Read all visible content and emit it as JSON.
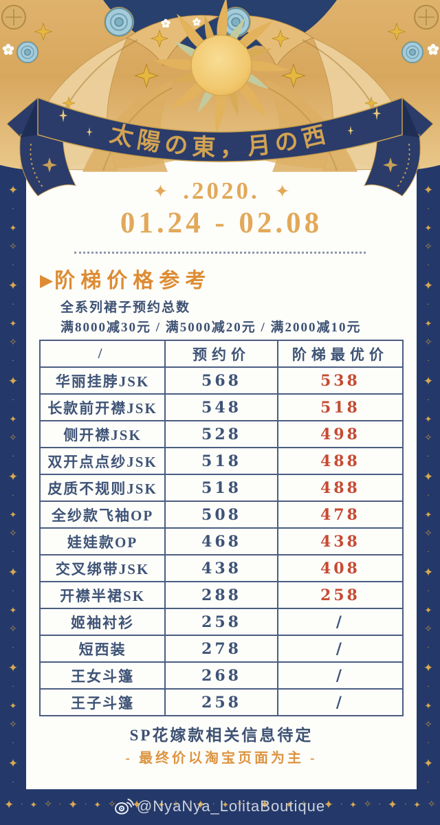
{
  "colors": {
    "page_navy": "#24396a",
    "panel_white": "#fdfdfa",
    "gold_star": "#d9a851",
    "date_gold": "#e2a959",
    "heading_orange": "#dd8c33",
    "body_navy": "#3d5173",
    "table_border_navy": "#4a5d80",
    "best_price_red": "#c64a32",
    "note2_gold": "#dd9440",
    "ribbon_navy": "#2b3c6a",
    "sun_gold": "#f3cd74"
  },
  "banner": {
    "title": "太陽の東，月の西"
  },
  "dates": {
    "year": ".2020.",
    "range": "01.24 - 02.08"
  },
  "section": {
    "marker": "▶",
    "heading": "阶梯价格参考",
    "line1": "全系列裙子预约总数",
    "line2": "满8000减30元 / 满5000减20元 / 满2000减10元"
  },
  "table": {
    "headers": [
      "/",
      "预约价",
      "阶梯最优价"
    ],
    "rows": [
      {
        "name": "华丽挂脖JSK",
        "preorder": "568",
        "best": "538"
      },
      {
        "name": "长款前开襟JSK",
        "preorder": "548",
        "best": "518"
      },
      {
        "name": "侧开襟JSK",
        "preorder": "528",
        "best": "498"
      },
      {
        "name": "双开点点纱JSK",
        "preorder": "518",
        "best": "488"
      },
      {
        "name": "皮质不规则JSK",
        "preorder": "518",
        "best": "488"
      },
      {
        "name": "全纱款飞袖OP",
        "preorder": "508",
        "best": "478"
      },
      {
        "name": "娃娃款OP",
        "preorder": "468",
        "best": "438"
      },
      {
        "name": "交叉绑带JSK",
        "preorder": "438",
        "best": "408"
      },
      {
        "name": "开襟半裙SK",
        "preorder": "288",
        "best": "258"
      },
      {
        "name": "姬袖衬衫",
        "preorder": "258",
        "best": "/"
      },
      {
        "name": "短西装",
        "preorder": "278",
        "best": "/"
      },
      {
        "name": "王女斗篷",
        "preorder": "268",
        "best": "/"
      },
      {
        "name": "王子斗篷",
        "preorder": "258",
        "best": "/"
      }
    ]
  },
  "footer": {
    "note1": "SP花嫁款相关信息待定",
    "note2": "- 最终价以淘宝页面为主 -",
    "watermark": "@NyaNya_LolitaBoutique"
  },
  "decorations": {
    "sparkle": "✦",
    "pattern": [
      {
        "glyph": "✦",
        "size": 17
      },
      {
        "glyph": "·",
        "size": 10
      },
      {
        "glyph": "✦",
        "size": 13
      },
      {
        "glyph": "✧",
        "size": 14
      },
      {
        "glyph": "·",
        "size": 10
      }
    ]
  }
}
